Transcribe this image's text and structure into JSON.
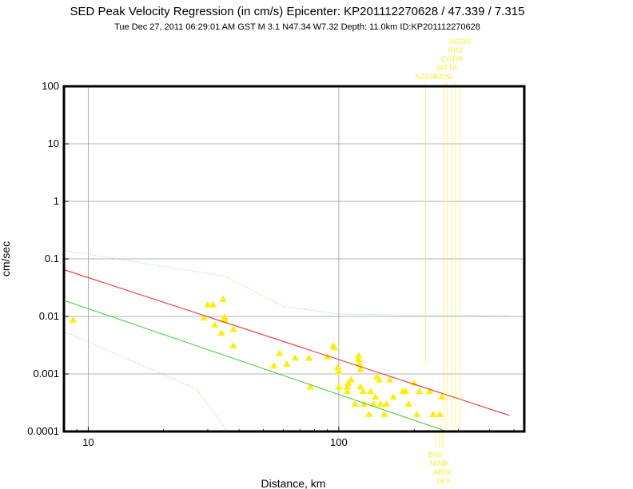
{
  "chart_data": {
    "type": "scatter",
    "title": "SED Peak Velocity Regression (in cm/s) Epicenter: KP201112270628 / 47.339 / 7.315",
    "subtitle": "Tue Dec 27, 2011 06:29:01 AM GST   M 3.1    N47.34 W7.32   Depth: 11.0km   ID:KP201112270628",
    "xlabel": "Distance, km",
    "ylabel": "cm/sec",
    "xscale": "log",
    "yscale": "log",
    "xlim": [
      8,
      550
    ],
    "ylim": [
      0.0001,
      100
    ],
    "x_ticks": [
      {
        "value": 10,
        "label": "10"
      },
      {
        "value": 100,
        "label": "100"
      }
    ],
    "y_ticks": [
      {
        "value": 100,
        "label": "100"
      },
      {
        "value": 10,
        "label": "10"
      },
      {
        "value": 1,
        "label": "1"
      },
      {
        "value": 0.1,
        "label": "0.1"
      },
      {
        "value": 0.01,
        "label": "0.01"
      },
      {
        "value": 0.001,
        "label": "0.001"
      },
      {
        "value": 0.0001,
        "label": "0.0001"
      }
    ],
    "grid": true,
    "series": [
      {
        "name": "",
        "kind": "markers",
        "marker": "triangle",
        "color": "#ffee00",
        "points": [
          [
            8.7,
            0.0087
          ],
          [
            29,
            0.0095
          ],
          [
            30,
            0.016
          ],
          [
            31.5,
            0.016
          ],
          [
            32,
            0.0072
          ],
          [
            34,
            0.0052
          ],
          [
            34.5,
            0.02
          ],
          [
            35,
            0.0098
          ],
          [
            35,
            0.0088
          ],
          [
            38,
            0.006
          ],
          [
            38,
            0.0031
          ],
          [
            55,
            0.0014
          ],
          [
            58,
            0.0023
          ],
          [
            62,
            0.0015
          ],
          [
            67,
            0.0019
          ],
          [
            76,
            0.0019
          ],
          [
            77,
            0.0006
          ],
          [
            90,
            0.002
          ],
          [
            95,
            0.0031
          ],
          [
            96,
            0.0029
          ],
          [
            99,
            0.0013
          ],
          [
            100,
            0.0011
          ],
          [
            100,
            0.0006
          ],
          [
            108,
            0.0006
          ],
          [
            108,
            0.0005
          ],
          [
            109,
            0.0007
          ],
          [
            112,
            0.0008
          ],
          [
            116,
            0.0003
          ],
          [
            120,
            0.0021
          ],
          [
            120,
            0.0018
          ],
          [
            121,
            0.0015
          ],
          [
            122,
            0.0012
          ],
          [
            122,
            0.0006
          ],
          [
            125,
            0.0005
          ],
          [
            126,
            0.0003
          ],
          [
            132,
            0.0002
          ],
          [
            134,
            0.0005
          ],
          [
            138,
            0.0003
          ],
          [
            140,
            0.0004
          ],
          [
            142,
            0.0009
          ],
          [
            145,
            0.0008
          ],
          [
            147,
            0.0003
          ],
          [
            152,
            0.0002
          ],
          [
            155,
            0.0003
          ],
          [
            160,
            0.0008
          ],
          [
            165,
            0.0004
          ],
          [
            180,
            0.0005
          ],
          [
            185,
            0.0005
          ],
          [
            190,
            0.0003
          ],
          [
            200,
            0.0007
          ],
          [
            205,
            0.0002
          ],
          [
            210,
            0.0005
          ],
          [
            230,
            0.0005
          ],
          [
            238,
            0.0002
          ],
          [
            253,
            0.0002
          ],
          [
            258,
            0.0004
          ]
        ]
      },
      {
        "name": "",
        "kind": "line",
        "color": "#ee2222",
        "points": [
          [
            8,
            0.065
          ],
          [
            480,
            0.00019
          ]
        ]
      },
      {
        "name": "",
        "kind": "line",
        "color": "#33cc33",
        "points": [
          [
            8,
            0.019
          ],
          [
            270,
            0.0001
          ]
        ]
      },
      {
        "name": "",
        "kind": "dotted",
        "color": "#88ee88",
        "points": [
          [
            8,
            0.14
          ],
          [
            35,
            0.05
          ],
          [
            60,
            0.015
          ],
          [
            100,
            0.011
          ],
          [
            200,
            0.0105
          ],
          [
            480,
            0.0102
          ]
        ]
      },
      {
        "name": "",
        "kind": "dotted",
        "color": "#88ee88",
        "points": [
          [
            8,
            0.0055
          ],
          [
            27,
            0.00055
          ],
          [
            36,
            0.0001
          ]
        ]
      }
    ],
    "stations_top": [
      {
        "name": "SZER",
        "x": 222,
        "y": 0.0014
      },
      {
        "name": "KOSI",
        "x": 262,
        "y": 0.0001
      },
      {
        "name": "WTTA",
        "x": 270,
        "y": 0.0001
      },
      {
        "name": "CGRP",
        "x": 283,
        "y": 0.0001
      },
      {
        "name": "RISI",
        "x": 292,
        "y": 0.0001
      },
      {
        "name": "AGOR",
        "x": 305,
        "y": 0.0001
      }
    ],
    "stations_bottom": [
      {
        "name": "BNI",
        "x": 242,
        "y": 0.0001
      },
      {
        "name": "MABI",
        "x": 252,
        "y": 0.0001
      },
      {
        "name": "ABSI",
        "x": 258,
        "y": 0.0001
      },
      {
        "name": "DOI",
        "x": 262,
        "y": 0.0001
      }
    ],
    "station_color": "#ffee33"
  }
}
